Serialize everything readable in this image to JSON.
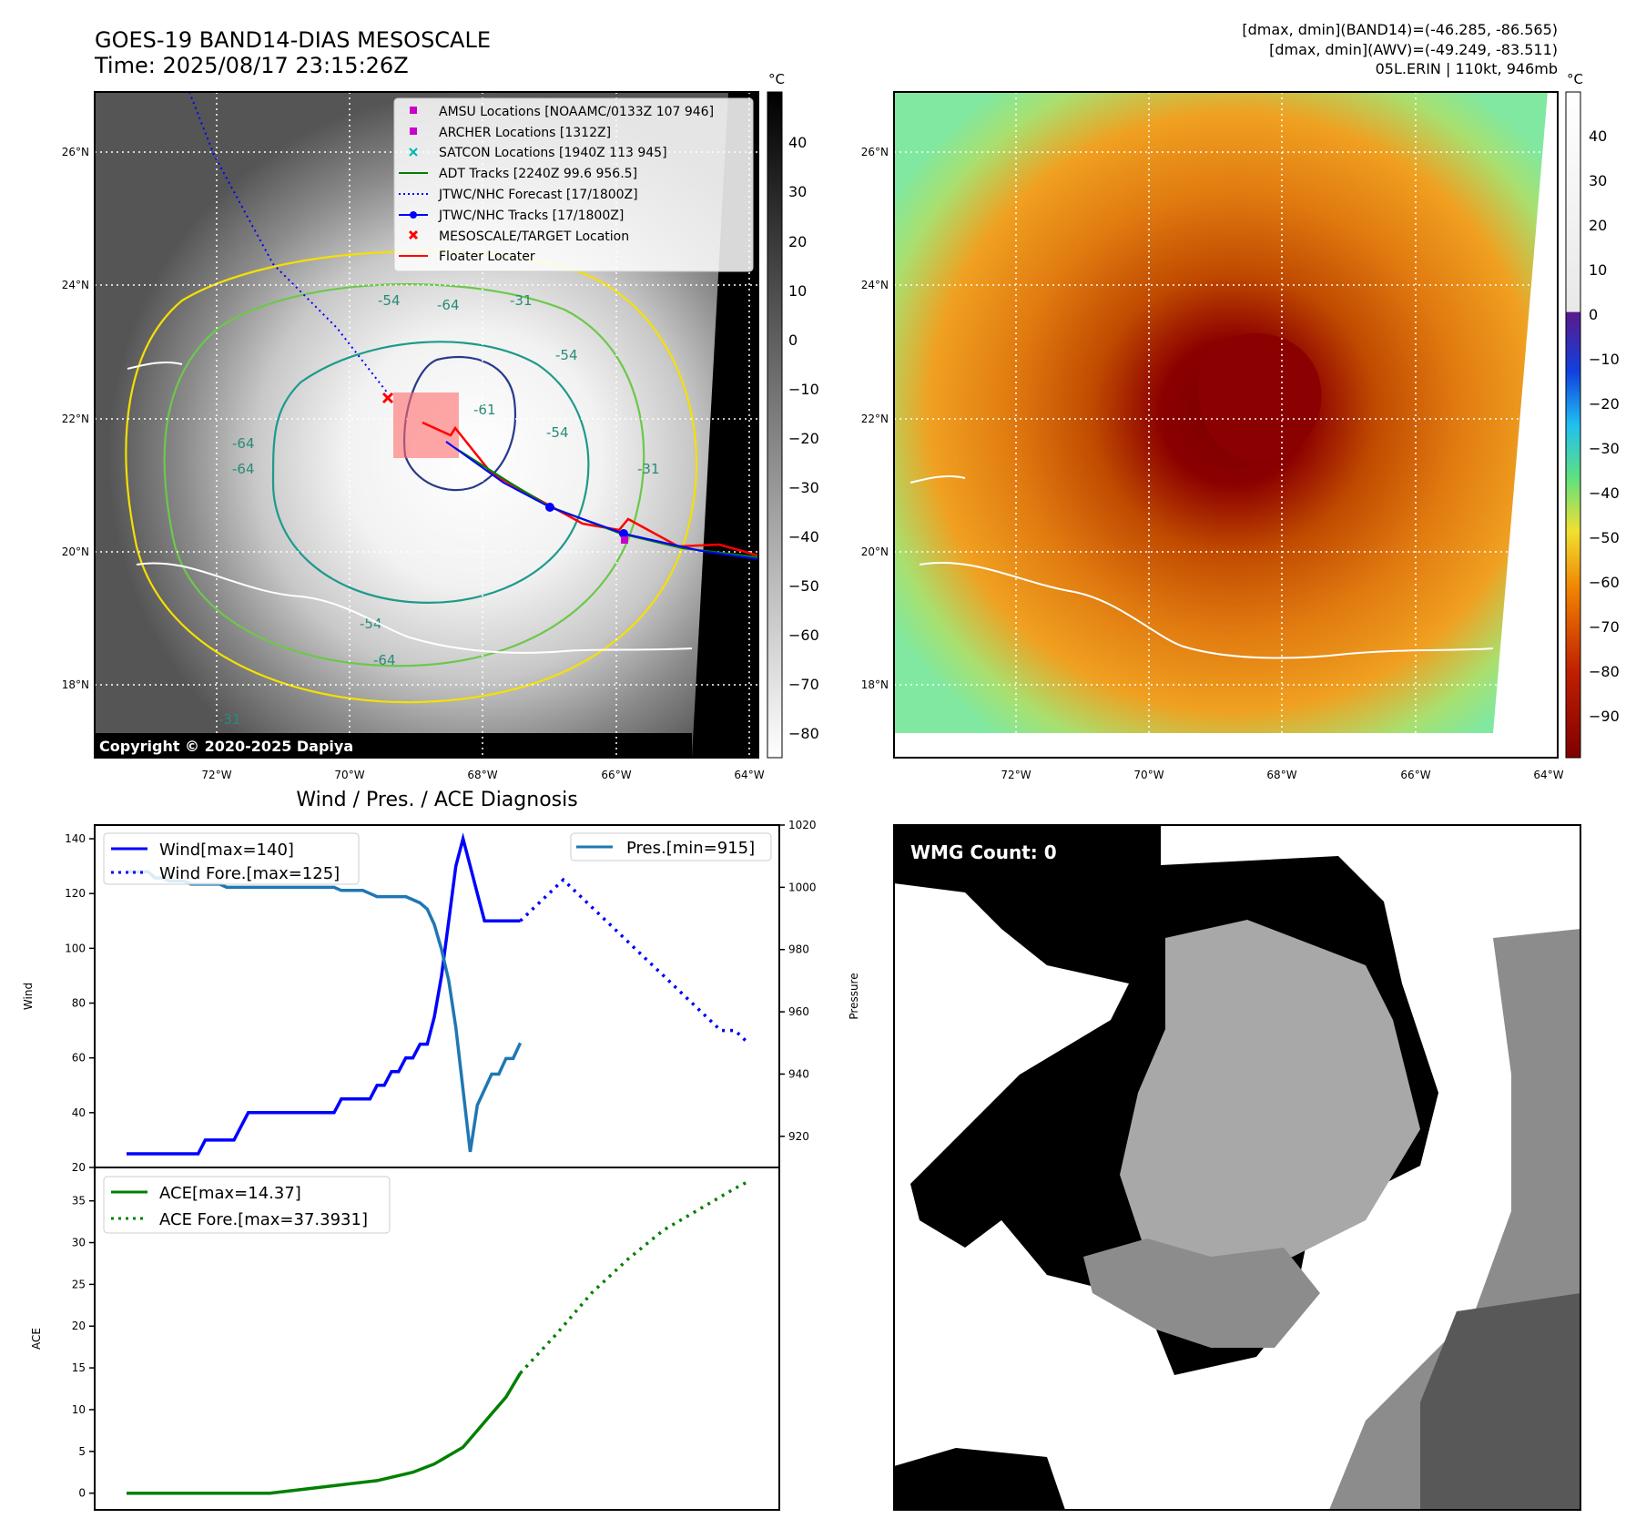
{
  "header": {
    "title_line1": "GOES-19 BAND14-DIAS MESOSCALE",
    "title_line2": "Time: 2025/08/17 23:15:26Z",
    "info_line1": "[dmax, dmin](BAND14)=(-46.285, -86.565)",
    "info_line2": "[dmax, dmin](AWV)=(-49.249, -83.511)",
    "info_line3": "05L.ERIN | 110kt, 946mb"
  },
  "map_axes": {
    "lon_ticks": [
      "72°W",
      "70°W",
      "68°W",
      "66°W",
      "64°W"
    ],
    "lat_ticks": [
      "26°N",
      "24°N",
      "22°N",
      "20°N",
      "18°N"
    ]
  },
  "ir_panel": {
    "copyright": "Copyright © 2020-2025 Dapiya",
    "colorbar_unit": "°C",
    "colorbar_ticks": [
      "40",
      "30",
      "20",
      "10",
      "0",
      "−10",
      "−20",
      "−30",
      "−40",
      "−50",
      "−60",
      "−70",
      "−80"
    ],
    "contour_labels": [
      "-54",
      "-64",
      "-31",
      "-54",
      "-64",
      "-61",
      "-54",
      "-64",
      "-31",
      "-54",
      "-64",
      "-31"
    ],
    "legend": [
      {
        "label": "AMSU Locations [NOAAMC/0133Z 107 946]",
        "color": "#c800c8",
        "marker": "square"
      },
      {
        "label": "ARCHER Locations [1312Z]",
        "color": "#c800c8",
        "marker": "square"
      },
      {
        "label": "SATCON Locations [1940Z 113 945]",
        "color": "#00b4b4",
        "marker": "x"
      },
      {
        "label": "ADT Tracks [2240Z 99.6 956.5]",
        "color": "#008000",
        "marker": "line"
      },
      {
        "label": "JTWC/NHC Forecast [17/1800Z]",
        "color": "#0000ff",
        "marker": "dotted"
      },
      {
        "label": "JTWC/NHC Tracks [17/1800Z]",
        "color": "#0000ff",
        "marker": "line-dot"
      },
      {
        "label": "MESOSCALE/TARGET Location",
        "color": "#ff0000",
        "marker": "x"
      },
      {
        "label": "Floater Locater",
        "color": "#ff0000",
        "marker": "line"
      }
    ]
  },
  "wv_panel": {
    "colorbar_unit": "°C",
    "colorbar_ticks": [
      "40",
      "30",
      "20",
      "10",
      "0",
      "−10",
      "−20",
      "−30",
      "−40",
      "−50",
      "−60",
      "−70",
      "−80",
      "−90"
    ]
  },
  "wmg_panel": {
    "label": "WMG Count: 0"
  },
  "chart_data": [
    {
      "type": "line",
      "title": "Wind / Pres. / ACE Diagnosis",
      "ylabel": "Wind",
      "ylabel_right": "Pressure",
      "ylim": [
        20,
        145
      ],
      "ylim_right": [
        910,
        1020
      ],
      "yticks": [
        20,
        40,
        60,
        80,
        100,
        120,
        140
      ],
      "yticks_right": [
        920,
        940,
        960,
        980,
        1000,
        1020
      ],
      "series": [
        {
          "name": "Wind[max=140]",
          "color": "#0000ff",
          "style": "solid",
          "axis": "left",
          "x": [
            0,
            1,
            2,
            3,
            4,
            5,
            6,
            7,
            8,
            9,
            10,
            11,
            12,
            13,
            14,
            15,
            16,
            17,
            18,
            19,
            20,
            21,
            22,
            23,
            24,
            25,
            26,
            27,
            28,
            29,
            30,
            31,
            32,
            33,
            34,
            35,
            36,
            37,
            38,
            39,
            40,
            41,
            42,
            43,
            44,
            45,
            46,
            47,
            48,
            49,
            50,
            51,
            52,
            53,
            54,
            55
          ],
          "values": [
            25,
            25,
            25,
            25,
            25,
            25,
            25,
            25,
            25,
            25,
            25,
            30,
            30,
            30,
            30,
            30,
            35,
            40,
            40,
            40,
            40,
            40,
            40,
            40,
            40,
            40,
            40,
            40,
            40,
            40,
            45,
            45,
            45,
            45,
            45,
            50,
            50,
            55,
            55,
            60,
            60,
            65,
            65,
            75,
            90,
            110,
            130,
            140,
            130,
            120,
            110,
            110,
            110,
            110,
            110,
            110
          ]
        },
        {
          "name": "Wind Fore.[max=125]",
          "color": "#0000ff",
          "style": "dotted",
          "axis": "left",
          "x": [
            55,
            57,
            59,
            61,
            63,
            65,
            67,
            69,
            71,
            73,
            75,
            77,
            79,
            81,
            83,
            85,
            87
          ],
          "values": [
            110,
            115,
            120,
            125,
            120,
            115,
            110,
            105,
            100,
            95,
            90,
            85,
            80,
            75,
            70,
            70,
            65
          ]
        },
        {
          "name": "Pres.[min=915]",
          "color": "#1f77b4",
          "style": "solid",
          "axis": "right",
          "x": [
            0,
            1,
            2,
            3,
            4,
            5,
            6,
            7,
            8,
            9,
            10,
            11,
            12,
            13,
            14,
            15,
            16,
            17,
            18,
            19,
            20,
            21,
            22,
            23,
            24,
            25,
            26,
            27,
            28,
            29,
            30,
            31,
            32,
            33,
            34,
            35,
            36,
            37,
            38,
            39,
            40,
            41,
            42,
            43,
            44,
            45,
            46,
            47,
            48,
            49,
            50,
            51,
            52,
            53,
            54,
            55
          ],
          "values": [
            1005,
            1005,
            1005,
            1005,
            1003,
            1003,
            1002,
            1002,
            1002,
            1001,
            1001,
            1001,
            1001,
            1001,
            1000,
            1000,
            1000,
            1000,
            1000,
            1000,
            1000,
            1000,
            1000,
            1000,
            1000,
            1000,
            1000,
            1000,
            1000,
            1000,
            999,
            999,
            999,
            999,
            998,
            997,
            997,
            997,
            997,
            997,
            996,
            995,
            993,
            988,
            980,
            970,
            955,
            935,
            915,
            930,
            935,
            940,
            940,
            945,
            945,
            950
          ]
        }
      ]
    },
    {
      "type": "line",
      "ylabel": "ACE",
      "ylim": [
        -2,
        39
      ],
      "yticks": [
        0,
        5,
        10,
        15,
        20,
        25,
        30,
        35
      ],
      "series": [
        {
          "name": "ACE[max=14.37]",
          "color": "#008000",
          "style": "solid",
          "x": [
            0,
            5,
            10,
            15,
            20,
            25,
            30,
            35,
            40,
            43,
            45,
            47,
            49,
            51,
            53,
            55
          ],
          "values": [
            0,
            0,
            0,
            0,
            0,
            0.5,
            1,
            1.5,
            2.5,
            3.5,
            4.5,
            5.5,
            7.5,
            9.5,
            11.5,
            14.37
          ]
        },
        {
          "name": "ACE Fore.[max=37.3931]",
          "color": "#008000",
          "style": "dotted",
          "x": [
            55,
            60,
            65,
            70,
            75,
            80,
            85,
            87
          ],
          "values": [
            14.37,
            19,
            24,
            28,
            31.5,
            34,
            36.5,
            37.39
          ]
        }
      ]
    }
  ]
}
